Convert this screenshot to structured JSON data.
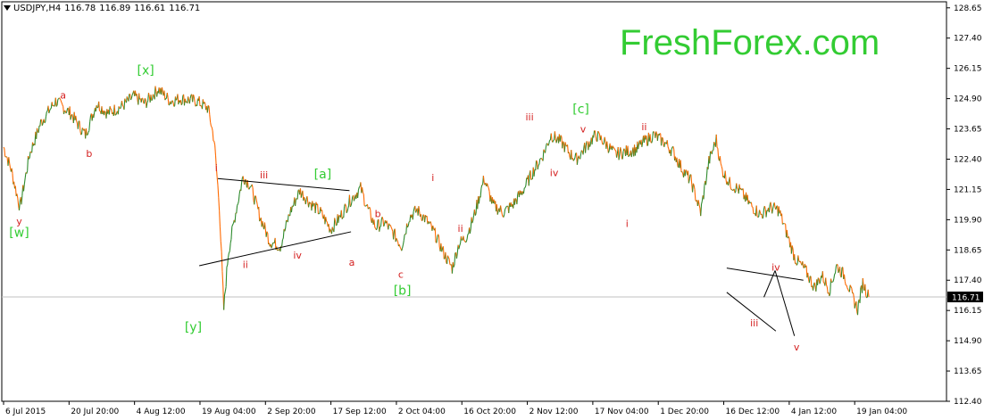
{
  "header": {
    "symbol": "USDJPY,H4",
    "open": "116.78",
    "high": "116.89",
    "low": "116.61",
    "close": "116.71"
  },
  "brand": "FreshForex.com",
  "colors": {
    "up": "#2e8b2e",
    "down": "#ff6a00",
    "wave_red": "#d42020",
    "wave_green": "#33cc33",
    "axis": "#000000",
    "price_line": "#c0c0c0"
  },
  "chart_data": {
    "type": "line",
    "title": "USDJPY,H4",
    "xlabel": "",
    "ylabel": "",
    "grid": false,
    "ylim": [
      112.4,
      128.9
    ],
    "y_ticks": [
      "128.65",
      "127.40",
      "126.15",
      "124.90",
      "123.65",
      "122.40",
      "121.15",
      "119.90",
      "118.65",
      "117.40",
      "116.15",
      "114.90",
      "113.65",
      "112.40"
    ],
    "current_price": "116.71",
    "x_ticks": [
      {
        "label": "6 Jul 2015",
        "bar": 0
      },
      {
        "label": "20 Jul 20:00",
        "bar": 88
      },
      {
        "label": "4 Aug 12:00",
        "bar": 176
      },
      {
        "label": "19 Aug 04:00",
        "bar": 264
      },
      {
        "label": "2 Sep 20:00",
        "bar": 352
      },
      {
        "label": "17 Sep 12:00",
        "bar": 440
      },
      {
        "label": "2 Oct 04:00",
        "bar": 528
      },
      {
        "label": "16 Oct 20:00",
        "bar": 616
      },
      {
        "label": "2 Nov 12:00",
        "bar": 704
      },
      {
        "label": "17 Nov 04:00",
        "bar": 792
      },
      {
        "label": "1 Dec 20:00",
        "bar": 880
      },
      {
        "label": "16 Dec 12:00",
        "bar": 968
      },
      {
        "label": "4 Jan 12:00",
        "bar": 1056
      },
      {
        "label": "19 Jan 04:00",
        "bar": 1144
      }
    ],
    "x_bar_range": [
      0,
      1265
    ],
    "series": [
      {
        "values": [
          [
            0,
            122.9
          ],
          [
            10,
            122.0
          ],
          [
            22,
            120.4
          ],
          [
            35,
            122.6
          ],
          [
            50,
            123.9
          ],
          [
            70,
            124.8
          ],
          [
            90,
            124.3
          ],
          [
            110,
            123.4
          ],
          [
            125,
            124.7
          ],
          [
            140,
            124.3
          ],
          [
            160,
            124.6
          ],
          [
            175,
            125.0
          ],
          [
            190,
            124.7
          ],
          [
            208,
            125.3
          ],
          [
            224,
            124.8
          ],
          [
            238,
            124.9
          ],
          [
            260,
            124.8
          ],
          [
            275,
            124.5
          ],
          [
            283,
            123.2
          ],
          [
            290,
            120.5
          ],
          [
            296,
            116.2
          ],
          [
            302,
            118.5
          ],
          [
            312,
            120.2
          ],
          [
            322,
            121.7
          ],
          [
            332,
            121.3
          ],
          [
            345,
            120.0
          ],
          [
            358,
            119.0
          ],
          [
            372,
            118.8
          ],
          [
            385,
            120.2
          ],
          [
            398,
            121.1
          ],
          [
            412,
            120.6
          ],
          [
            426,
            120.2
          ],
          [
            440,
            119.5
          ],
          [
            452,
            120.0
          ],
          [
            466,
            120.7
          ],
          [
            480,
            121.2
          ],
          [
            490,
            120.3
          ],
          [
            500,
            119.6
          ],
          [
            512,
            119.8
          ],
          [
            525,
            119.3
          ],
          [
            535,
            118.8
          ],
          [
            545,
            120.0
          ],
          [
            556,
            120.3
          ],
          [
            568,
            119.9
          ],
          [
            580,
            119.3
          ],
          [
            592,
            118.5
          ],
          [
            603,
            117.9
          ],
          [
            612,
            118.9
          ],
          [
            622,
            119.2
          ],
          [
            632,
            120.0
          ],
          [
            646,
            121.6
          ],
          [
            658,
            120.5
          ],
          [
            672,
            120.2
          ],
          [
            684,
            120.5
          ],
          [
            698,
            121.1
          ],
          [
            712,
            121.9
          ],
          [
            724,
            122.5
          ],
          [
            736,
            123.4
          ],
          [
            750,
            123.1
          ],
          [
            762,
            122.6
          ],
          [
            770,
            122.4
          ],
          [
            785,
            123.0
          ],
          [
            796,
            123.4
          ],
          [
            808,
            123.1
          ],
          [
            822,
            122.6
          ],
          [
            836,
            122.7
          ],
          [
            850,
            122.8
          ],
          [
            860,
            123.1
          ],
          [
            874,
            123.4
          ],
          [
            888,
            123.1
          ],
          [
            900,
            122.7
          ],
          [
            912,
            122.0
          ],
          [
            924,
            121.5
          ],
          [
            937,
            120.2
          ],
          [
            948,
            122.3
          ],
          [
            958,
            123.2
          ],
          [
            965,
            122.0
          ],
          [
            976,
            121.4
          ],
          [
            990,
            121.1
          ],
          [
            1004,
            120.5
          ],
          [
            1018,
            120.1
          ],
          [
            1030,
            120.4
          ],
          [
            1042,
            120.3
          ],
          [
            1052,
            119.4
          ],
          [
            1064,
            118.3
          ],
          [
            1078,
            117.8
          ],
          [
            1090,
            117.1
          ],
          [
            1100,
            117.6
          ],
          [
            1110,
            117.0
          ],
          [
            1120,
            118.0
          ],
          [
            1130,
            117.6
          ],
          [
            1140,
            116.8
          ],
          [
            1148,
            116.2
          ],
          [
            1155,
            117.3
          ],
          [
            1163,
            116.71
          ]
        ]
      }
    ],
    "annotations": [
      {
        "text": "y",
        "bar": 21,
        "price": 119.7,
        "color": "red"
      },
      {
        "text": "[w]",
        "bar": 21,
        "price": 119.2,
        "color": "green"
      },
      {
        "text": "a",
        "bar": 80,
        "price": 124.9,
        "color": "red"
      },
      {
        "text": "b",
        "bar": 115,
        "price": 122.5,
        "color": "red"
      },
      {
        "text": "[x]",
        "bar": 191,
        "price": 125.9,
        "color": "green"
      },
      {
        "text": "[y]",
        "bar": 255,
        "price": 115.3,
        "color": "green"
      },
      {
        "text": "i",
        "bar": 286,
        "price": 121.9,
        "color": "red"
      },
      {
        "text": "ii",
        "bar": 325,
        "price": 117.9,
        "color": "red"
      },
      {
        "text": "iii",
        "bar": 350,
        "price": 121.6,
        "color": "red"
      },
      {
        "text": "iv",
        "bar": 395,
        "price": 118.3,
        "color": "red"
      },
      {
        "text": "[a]",
        "bar": 429,
        "price": 121.6,
        "color": "green"
      },
      {
        "text": "b",
        "bar": 503,
        "price": 120.0,
        "color": "red"
      },
      {
        "text": "a",
        "bar": 468,
        "price": 118.0,
        "color": "red"
      },
      {
        "text": "c",
        "bar": 534,
        "price": 117.5,
        "color": "red"
      },
      {
        "text": "[b]",
        "bar": 536,
        "price": 116.8,
        "color": "green"
      },
      {
        "text": "i",
        "bar": 577,
        "price": 121.5,
        "color": "red"
      },
      {
        "text": "ii",
        "bar": 614,
        "price": 119.4,
        "color": "red"
      },
      {
        "text": "iii",
        "bar": 707,
        "price": 124.0,
        "color": "red"
      },
      {
        "text": "iv",
        "bar": 740,
        "price": 121.7,
        "color": "red"
      },
      {
        "text": "[c]",
        "bar": 776,
        "price": 124.3,
        "color": "green"
      },
      {
        "text": "v",
        "bar": 779,
        "price": 123.5,
        "color": "red"
      },
      {
        "text": "ii",
        "bar": 861,
        "price": 123.6,
        "color": "red"
      },
      {
        "text": "i",
        "bar": 838,
        "price": 119.6,
        "color": "red"
      },
      {
        "text": "iii",
        "bar": 1009,
        "price": 115.5,
        "color": "red"
      },
      {
        "text": "iv",
        "bar": 1038,
        "price": 117.8,
        "color": "red"
      },
      {
        "text": "v",
        "bar": 1066,
        "price": 114.5,
        "color": "red"
      }
    ],
    "trend_lines": [
      {
        "from": [
          288,
          121.6
        ],
        "to": [
          465,
          121.1
        ]
      },
      {
        "from": [
          263,
          118.0
        ],
        "to": [
          467,
          119.4
        ]
      },
      {
        "from": [
          972,
          117.9
        ],
        "to": [
          1075,
          117.4
        ]
      },
      {
        "from": [
          972,
          116.9
        ],
        "to": [
          1038,
          115.3
        ]
      },
      {
        "from": [
          1022,
          116.7
        ],
        "to": [
          1037,
          117.8
        ]
      },
      {
        "from": [
          1037,
          117.8
        ],
        "to": [
          1063,
          115.1
        ]
      }
    ]
  }
}
